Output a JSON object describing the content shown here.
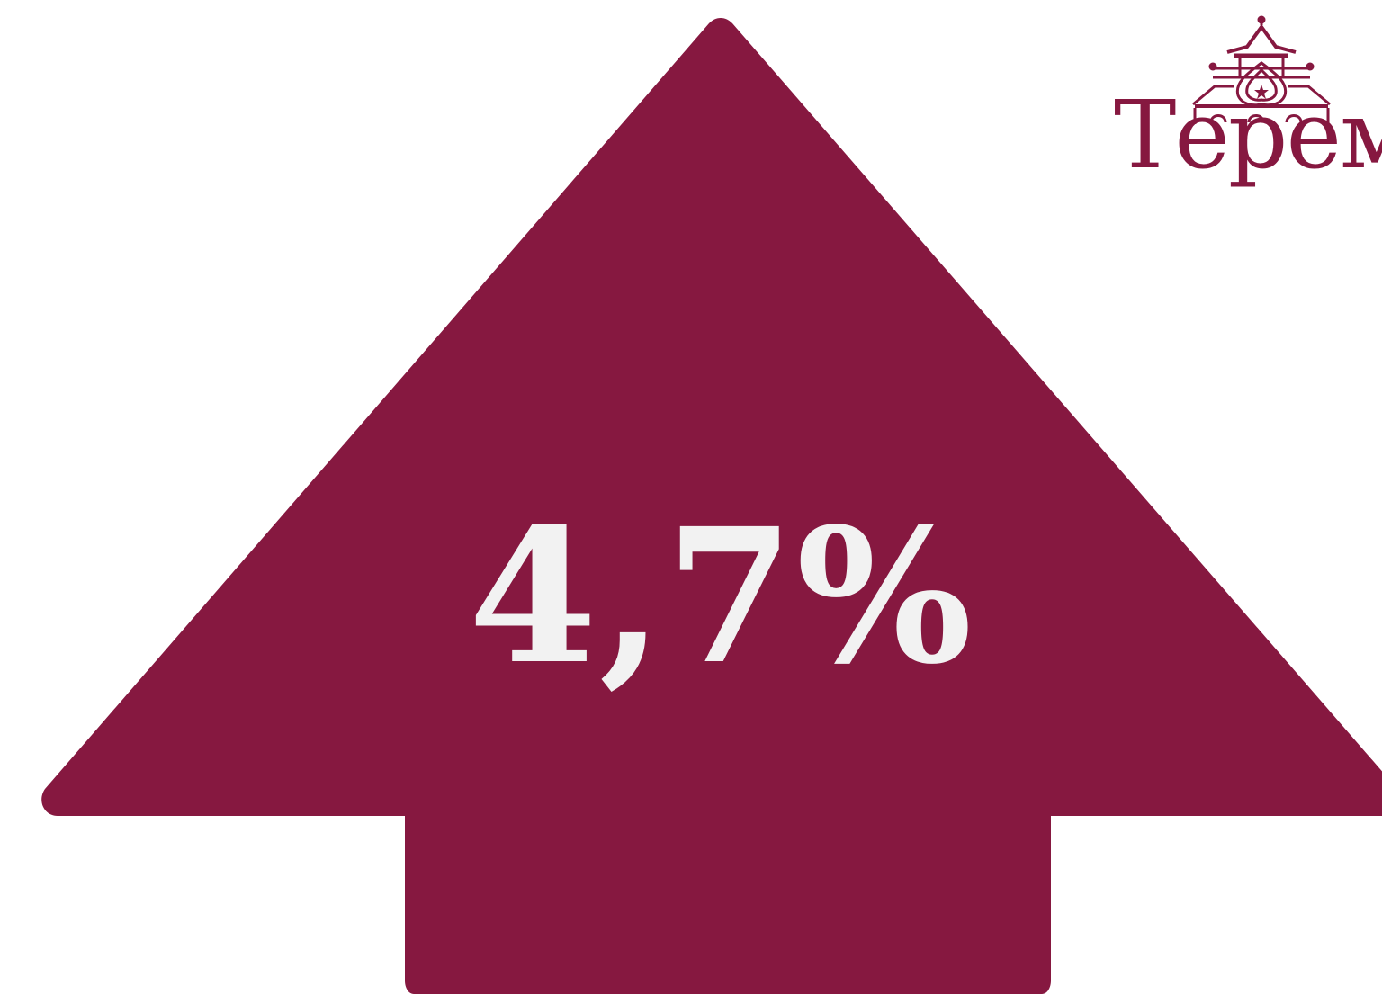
{
  "stat": {
    "value": "4,7%",
    "direction": "up",
    "arrow_color": "#861840",
    "text_color": "#f2f2f2"
  },
  "logo": {
    "text": "ТеремЪ",
    "color": "#861840",
    "icon": "terem-roof-icon"
  }
}
